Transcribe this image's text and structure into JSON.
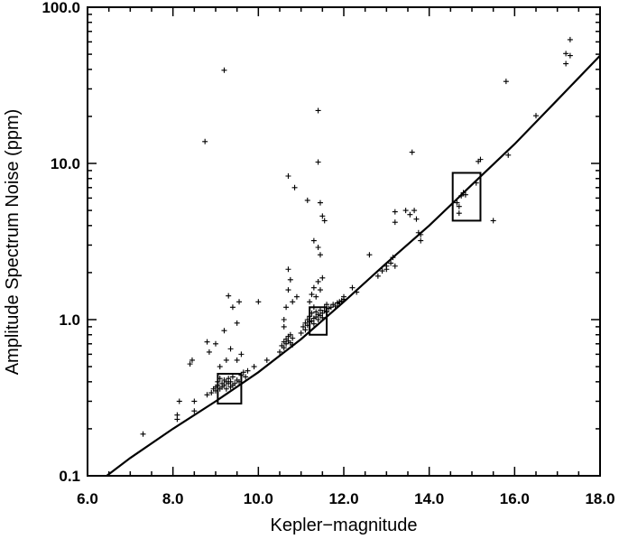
{
  "chart_data": {
    "type": "scatter",
    "title": "",
    "xlabel": "Kepler−magnitude",
    "ylabel": "Amplitude Spectrum Noise (ppm)",
    "xlim": [
      6.0,
      18.0
    ],
    "ylim": [
      0.1,
      100.0
    ],
    "yscale": "log",
    "grid": false,
    "x_ticks": [
      6.0,
      8.0,
      10.0,
      12.0,
      14.0,
      16.0,
      18.0
    ],
    "x_tick_labels": [
      "6.0",
      "8.0",
      "10.0",
      "12.0",
      "14.0",
      "16.0",
      "18.0"
    ],
    "y_ticks": [
      0.1,
      1.0,
      10.0,
      100.0
    ],
    "y_tick_labels": [
      "0.1",
      "1.0",
      "10.0",
      "100.0"
    ],
    "marker": "+",
    "points": [
      {
        "x": 7.3,
        "y": 0.185
      },
      {
        "x": 8.1,
        "y": 0.23
      },
      {
        "x": 8.1,
        "y": 0.245
      },
      {
        "x": 8.15,
        "y": 0.3
      },
      {
        "x": 8.4,
        "y": 0.52
      },
      {
        "x": 8.45,
        "y": 0.55
      },
      {
        "x": 8.5,
        "y": 0.3
      },
      {
        "x": 8.5,
        "y": 0.26
      },
      {
        "x": 8.75,
        "y": 13.8
      },
      {
        "x": 8.8,
        "y": 0.72
      },
      {
        "x": 8.85,
        "y": 0.62
      },
      {
        "x": 8.8,
        "y": 0.33
      },
      {
        "x": 8.9,
        "y": 0.34
      },
      {
        "x": 8.95,
        "y": 0.36
      },
      {
        "x": 9.0,
        "y": 0.37
      },
      {
        "x": 9.0,
        "y": 0.35
      },
      {
        "x": 9.05,
        "y": 0.38
      },
      {
        "x": 9.05,
        "y": 0.4
      },
      {
        "x": 9.1,
        "y": 0.36
      },
      {
        "x": 9.1,
        "y": 0.42
      },
      {
        "x": 9.15,
        "y": 0.39
      },
      {
        "x": 9.15,
        "y": 0.37
      },
      {
        "x": 9.2,
        "y": 0.41
      },
      {
        "x": 9.2,
        "y": 0.38
      },
      {
        "x": 9.2,
        "y": 39.5
      },
      {
        "x": 9.25,
        "y": 0.4
      },
      {
        "x": 9.25,
        "y": 0.36
      },
      {
        "x": 9.3,
        "y": 0.39
      },
      {
        "x": 9.3,
        "y": 0.42
      },
      {
        "x": 9.35,
        "y": 0.37
      },
      {
        "x": 9.35,
        "y": 0.4
      },
      {
        "x": 9.4,
        "y": 0.38
      },
      {
        "x": 9.4,
        "y": 0.43
      },
      {
        "x": 9.45,
        "y": 0.39
      },
      {
        "x": 9.5,
        "y": 0.41
      },
      {
        "x": 9.55,
        "y": 0.4
      },
      {
        "x": 9.6,
        "y": 0.44
      },
      {
        "x": 9.65,
        "y": 0.46
      },
      {
        "x": 9.7,
        "y": 0.43
      },
      {
        "x": 9.75,
        "y": 0.47
      },
      {
        "x": 9.3,
        "y": 1.42
      },
      {
        "x": 9.4,
        "y": 1.2
      },
      {
        "x": 9.5,
        "y": 0.95
      },
      {
        "x": 9.55,
        "y": 1.3
      },
      {
        "x": 9.2,
        "y": 0.85
      },
      {
        "x": 9.25,
        "y": 0.55
      },
      {
        "x": 9.1,
        "y": 0.5
      },
      {
        "x": 9.0,
        "y": 0.7
      },
      {
        "x": 9.35,
        "y": 0.65
      },
      {
        "x": 9.6,
        "y": 0.6
      },
      {
        "x": 9.5,
        "y": 0.55
      },
      {
        "x": 10.0,
        "y": 1.3
      },
      {
        "x": 9.9,
        "y": 0.5
      },
      {
        "x": 10.2,
        "y": 0.55
      },
      {
        "x": 10.5,
        "y": 0.62
      },
      {
        "x": 10.55,
        "y": 0.68
      },
      {
        "x": 10.6,
        "y": 0.72
      },
      {
        "x": 10.6,
        "y": 0.66
      },
      {
        "x": 10.65,
        "y": 0.75
      },
      {
        "x": 10.65,
        "y": 0.7
      },
      {
        "x": 10.7,
        "y": 0.78
      },
      {
        "x": 10.7,
        "y": 0.73
      },
      {
        "x": 10.75,
        "y": 0.71
      },
      {
        "x": 10.75,
        "y": 0.8
      },
      {
        "x": 10.8,
        "y": 0.76
      },
      {
        "x": 10.8,
        "y": 0.69
      },
      {
        "x": 10.6,
        "y": 1.0
      },
      {
        "x": 10.65,
        "y": 1.2
      },
      {
        "x": 10.7,
        "y": 1.55
      },
      {
        "x": 10.7,
        "y": 2.1
      },
      {
        "x": 10.75,
        "y": 1.8
      },
      {
        "x": 10.8,
        "y": 1.3
      },
      {
        "x": 10.6,
        "y": 0.9
      },
      {
        "x": 10.7,
        "y": 8.3
      },
      {
        "x": 10.85,
        "y": 7.0
      },
      {
        "x": 10.9,
        "y": 1.4
      },
      {
        "x": 11.0,
        "y": 0.82
      },
      {
        "x": 11.05,
        "y": 0.9
      },
      {
        "x": 11.1,
        "y": 0.86
      },
      {
        "x": 11.1,
        "y": 0.95
      },
      {
        "x": 11.15,
        "y": 0.92
      },
      {
        "x": 11.15,
        "y": 1.0
      },
      {
        "x": 11.2,
        "y": 0.97
      },
      {
        "x": 11.2,
        "y": 1.05
      },
      {
        "x": 11.25,
        "y": 0.98
      },
      {
        "x": 11.25,
        "y": 1.1
      },
      {
        "x": 11.3,
        "y": 1.02
      },
      {
        "x": 11.3,
        "y": 0.94
      },
      {
        "x": 11.35,
        "y": 1.04
      },
      {
        "x": 11.35,
        "y": 1.12
      },
      {
        "x": 11.4,
        "y": 1.0
      },
      {
        "x": 11.4,
        "y": 1.08
      },
      {
        "x": 11.45,
        "y": 1.06
      },
      {
        "x": 11.45,
        "y": 1.15
      },
      {
        "x": 11.5,
        "y": 1.1
      },
      {
        "x": 11.5,
        "y": 1.03
      },
      {
        "x": 11.55,
        "y": 1.14
      },
      {
        "x": 11.55,
        "y": 1.2
      },
      {
        "x": 11.6,
        "y": 1.12
      },
      {
        "x": 11.2,
        "y": 1.3
      },
      {
        "x": 11.25,
        "y": 1.45
      },
      {
        "x": 11.3,
        "y": 1.6
      },
      {
        "x": 11.4,
        "y": 1.75
      },
      {
        "x": 11.45,
        "y": 1.55
      },
      {
        "x": 11.5,
        "y": 1.85
      },
      {
        "x": 11.35,
        "y": 1.4
      },
      {
        "x": 11.15,
        "y": 5.8
      },
      {
        "x": 11.3,
        "y": 3.2
      },
      {
        "x": 11.4,
        "y": 2.9
      },
      {
        "x": 11.45,
        "y": 2.6
      },
      {
        "x": 11.4,
        "y": 10.2
      },
      {
        "x": 11.45,
        "y": 5.6
      },
      {
        "x": 11.5,
        "y": 4.6
      },
      {
        "x": 11.55,
        "y": 4.3
      },
      {
        "x": 11.4,
        "y": 21.8
      },
      {
        "x": 11.3,
        "y": 1.2
      },
      {
        "x": 11.6,
        "y": 1.25
      },
      {
        "x": 11.65,
        "y": 1.18
      },
      {
        "x": 11.7,
        "y": 1.2
      },
      {
        "x": 11.75,
        "y": 1.25
      },
      {
        "x": 11.8,
        "y": 1.22
      },
      {
        "x": 11.85,
        "y": 1.28
      },
      {
        "x": 11.9,
        "y": 1.3
      },
      {
        "x": 11.95,
        "y": 1.32
      },
      {
        "x": 12.0,
        "y": 1.35
      },
      {
        "x": 12.0,
        "y": 1.4
      },
      {
        "x": 11.9,
        "y": 1.26
      },
      {
        "x": 12.2,
        "y": 1.6
      },
      {
        "x": 12.3,
        "y": 1.5
      },
      {
        "x": 12.6,
        "y": 2.6
      },
      {
        "x": 12.8,
        "y": 1.9
      },
      {
        "x": 12.9,
        "y": 2.05
      },
      {
        "x": 13.0,
        "y": 2.1
      },
      {
        "x": 13.0,
        "y": 2.2
      },
      {
        "x": 13.1,
        "y": 2.3
      },
      {
        "x": 13.15,
        "y": 2.5
      },
      {
        "x": 13.2,
        "y": 2.2
      },
      {
        "x": 13.2,
        "y": 4.9
      },
      {
        "x": 13.2,
        "y": 4.2
      },
      {
        "x": 13.45,
        "y": 5.0
      },
      {
        "x": 13.55,
        "y": 4.7
      },
      {
        "x": 13.6,
        "y": 11.8
      },
      {
        "x": 13.65,
        "y": 5.0
      },
      {
        "x": 13.7,
        "y": 4.4
      },
      {
        "x": 13.75,
        "y": 3.6
      },
      {
        "x": 13.8,
        "y": 3.5
      },
      {
        "x": 13.8,
        "y": 3.2
      },
      {
        "x": 14.65,
        "y": 5.6
      },
      {
        "x": 14.7,
        "y": 5.3
      },
      {
        "x": 14.75,
        "y": 6.2
      },
      {
        "x": 14.8,
        "y": 6.5
      },
      {
        "x": 14.85,
        "y": 6.3
      },
      {
        "x": 14.7,
        "y": 4.8
      },
      {
        "x": 15.1,
        "y": 7.5
      },
      {
        "x": 15.15,
        "y": 10.3
      },
      {
        "x": 15.2,
        "y": 10.6
      },
      {
        "x": 15.5,
        "y": 4.3
      },
      {
        "x": 15.8,
        "y": 33.5
      },
      {
        "x": 15.85,
        "y": 11.3
      },
      {
        "x": 16.5,
        "y": 20.2
      },
      {
        "x": 17.2,
        "y": 50.5
      },
      {
        "x": 17.3,
        "y": 49.0
      },
      {
        "x": 17.2,
        "y": 43.5
      },
      {
        "x": 17.3,
        "y": 62.0
      }
    ],
    "fit_curve": {
      "x": [
        6.45,
        7.0,
        8.0,
        9.0,
        10.0,
        11.0,
        12.0,
        13.0,
        14.0,
        15.0,
        16.0,
        17.0,
        18.0
      ],
      "y": [
        0.1,
        0.13,
        0.2,
        0.3,
        0.46,
        0.75,
        1.3,
        2.3,
        4.0,
        7.3,
        13.3,
        25.5,
        49.0
      ]
    },
    "boxes": [
      {
        "x0": 9.05,
        "x1": 9.6,
        "y0": 0.29,
        "y1": 0.45
      },
      {
        "x0": 11.2,
        "x1": 11.6,
        "y0": 0.8,
        "y1": 1.2
      },
      {
        "x0": 14.55,
        "x1": 15.2,
        "y0": 4.3,
        "y1": 8.7
      }
    ]
  }
}
